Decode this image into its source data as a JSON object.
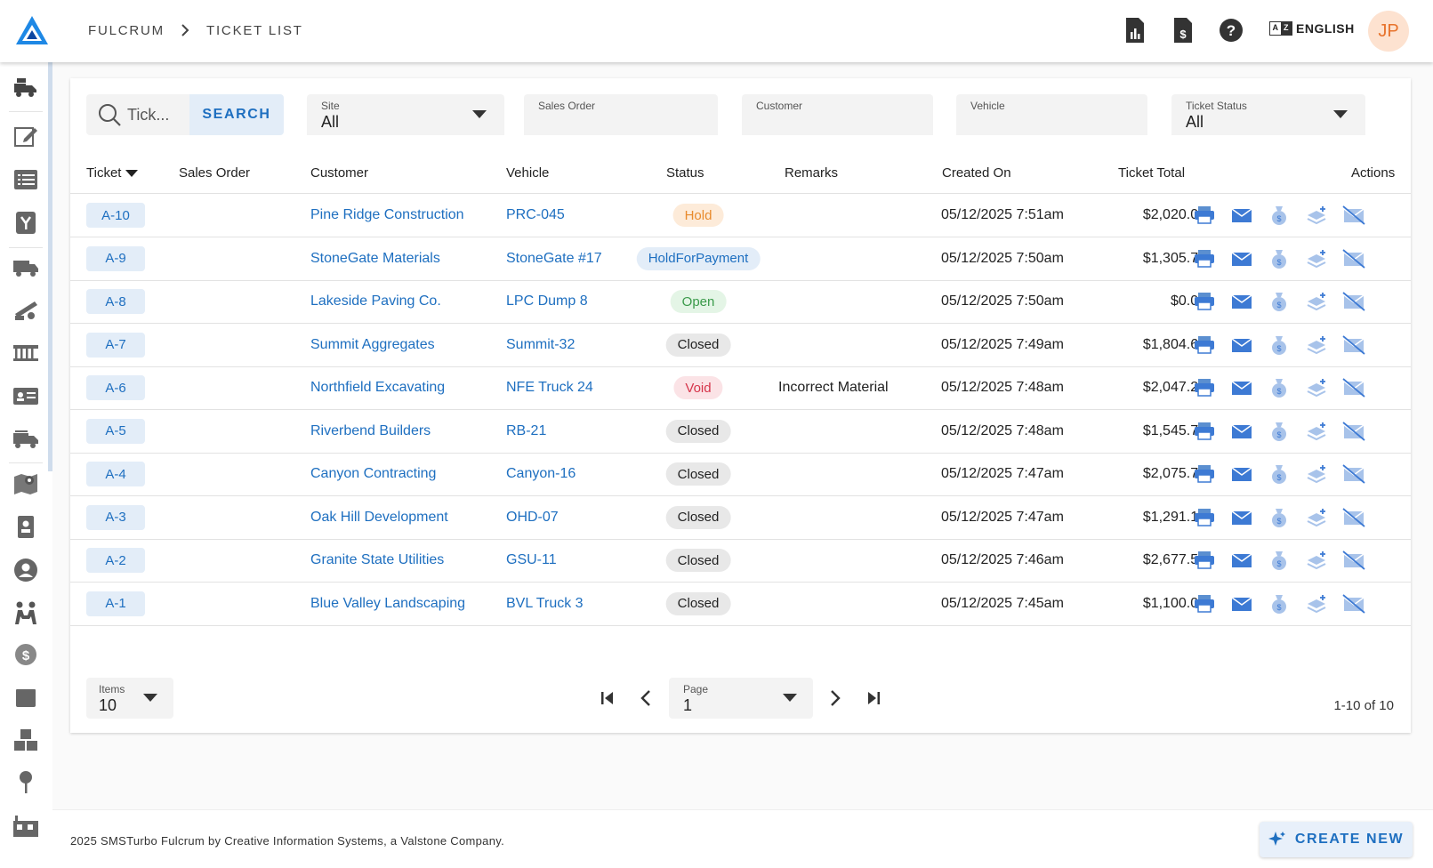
{
  "header": {
    "breadcrumb_root": "FULCRUM",
    "breadcrumb_current": "TICKET LIST",
    "language_code_a": "A",
    "language_code_z": "Z",
    "language_label": "ENGLISH",
    "avatar_initials": "JP"
  },
  "sidebar": {
    "icons": [
      "truck-cab-icon",
      "edit-icon",
      "list-icon",
      "scale-icon",
      "delivery-truck-icon",
      "conveyor-icon",
      "fence-icon",
      "id-card-icon",
      "multi-truck-icon",
      "map-pin-icon",
      "badge-icon",
      "user-icon",
      "people-icon",
      "dollar-badge-icon",
      "box-icon",
      "boxes-icon",
      "pin-icon",
      "factory-icon"
    ]
  },
  "filters": {
    "search_placeholder": "Tick...",
    "search_button": "SEARCH",
    "site_label": "Site",
    "site_value": "All",
    "sales_order_label": "Sales Order",
    "customer_label": "Customer",
    "vehicle_label": "Vehicle",
    "status_label": "Ticket Status",
    "status_value": "All"
  },
  "table": {
    "columns": [
      "Ticket",
      "Sales Order",
      "Customer",
      "Vehicle",
      "Status",
      "Remarks",
      "Created On",
      "Ticket Total",
      "Actions"
    ],
    "rows": [
      {
        "ticket": "A-10",
        "sales_order": "",
        "customer": "Pine Ridge Construction",
        "vehicle": "PRC-045",
        "status": "Hold",
        "status_kind": "hold",
        "remarks": "",
        "created": "05/12/2025 7:51am",
        "total": "$2,020.00"
      },
      {
        "ticket": "A-9",
        "sales_order": "",
        "customer": "StoneGate Materials",
        "vehicle": "StoneGate #17",
        "status": "HoldForPayment",
        "status_kind": "holdpay",
        "remarks": "",
        "created": "05/12/2025 7:50am",
        "total": "$1,305.70"
      },
      {
        "ticket": "A-8",
        "sales_order": "",
        "customer": "Lakeside Paving Co.",
        "vehicle": "LPC Dump 8",
        "status": "Open",
        "status_kind": "open",
        "remarks": "",
        "created": "05/12/2025 7:50am",
        "total": "$0.00"
      },
      {
        "ticket": "A-7",
        "sales_order": "",
        "customer": "Summit Aggregates",
        "vehicle": "Summit-32",
        "status": "Closed",
        "status_kind": "closed",
        "remarks": "",
        "created": "05/12/2025 7:49am",
        "total": "$1,804.60"
      },
      {
        "ticket": "A-6",
        "sales_order": "",
        "customer": "Northfield Excavating",
        "vehicle": "NFE Truck 24",
        "status": "Void",
        "status_kind": "void",
        "remarks": "Incorrect Material",
        "created": "05/12/2025 7:48am",
        "total": "$2,047.20"
      },
      {
        "ticket": "A-5",
        "sales_order": "",
        "customer": "Riverbend Builders",
        "vehicle": "RB-21",
        "status": "Closed",
        "status_kind": "closed",
        "remarks": "",
        "created": "05/12/2025 7:48am",
        "total": "$1,545.70"
      },
      {
        "ticket": "A-4",
        "sales_order": "",
        "customer": "Canyon Contracting",
        "vehicle": "Canyon-16",
        "status": "Closed",
        "status_kind": "closed",
        "remarks": "",
        "created": "05/12/2025 7:47am",
        "total": "$2,075.75"
      },
      {
        "ticket": "A-3",
        "sales_order": "",
        "customer": "Oak Hill Development",
        "vehicle": "OHD-07",
        "status": "Closed",
        "status_kind": "closed",
        "remarks": "",
        "created": "05/12/2025 7:47am",
        "total": "$1,291.13"
      },
      {
        "ticket": "A-2",
        "sales_order": "",
        "customer": "Granite State Utilities",
        "vehicle": "GSU-11",
        "status": "Closed",
        "status_kind": "closed",
        "remarks": "",
        "created": "05/12/2025 7:46am",
        "total": "$2,677.50"
      },
      {
        "ticket": "A-1",
        "sales_order": "",
        "customer": "Blue Valley Landscaping",
        "vehicle": "BVL Truck 3",
        "status": "Closed",
        "status_kind": "closed",
        "remarks": "",
        "created": "05/12/2025 7:45am",
        "total": "$1,100.00"
      }
    ],
    "row_actions": [
      "print-icon",
      "email-icon",
      "money-bag-icon",
      "layers-plus-icon",
      "email-off-icon"
    ]
  },
  "pagination": {
    "items_label": "Items",
    "items_value": "10",
    "page_label": "Page",
    "page_value": "1",
    "range_text": "1-10 of 10"
  },
  "footer": {
    "copyright": "2025 SMSTurbo Fulcrum by Creative Information Systems, a Valstone Company.",
    "create_button": "CREATE NEW"
  },
  "colors": {
    "accent": "#1e6fc0",
    "hold": "#e88a2c",
    "open": "#3a9a4a",
    "void": "#d6344a",
    "avatar_bg": "#fde2d0"
  }
}
